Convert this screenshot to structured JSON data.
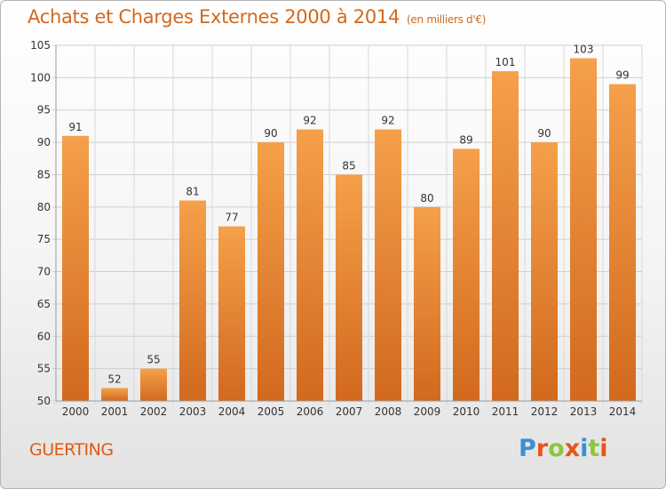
{
  "chart_data": {
    "type": "bar",
    "title": "Achats et Charges Externes 2000 à 2014",
    "subtitle": "(en milliers d'€)",
    "categories": [
      "2000",
      "2001",
      "2002",
      "2003",
      "2004",
      "2005",
      "2006",
      "2007",
      "2008",
      "2009",
      "2010",
      "2011",
      "2012",
      "2013",
      "2014"
    ],
    "values": [
      91,
      52,
      55,
      81,
      77,
      90,
      92,
      85,
      92,
      80,
      89,
      101,
      90,
      103,
      99
    ],
    "ylim": [
      50,
      105
    ],
    "yticks": [
      50,
      55,
      60,
      65,
      70,
      75,
      80,
      85,
      90,
      95,
      100,
      105
    ],
    "grid": true,
    "bar_color": "#f5a04a",
    "bar_color_dark": "#d2691e"
  },
  "footer": {
    "place": "GUERTING",
    "logo_letters": [
      "P",
      "r",
      "o",
      "x",
      "i",
      "t",
      "i"
    ],
    "logo_colors": [
      "#3b8fd6",
      "#e8541c",
      "#8dc63f",
      "#e8541c",
      "#3b8fd6",
      "#8dc63f",
      "#e8541c"
    ]
  }
}
